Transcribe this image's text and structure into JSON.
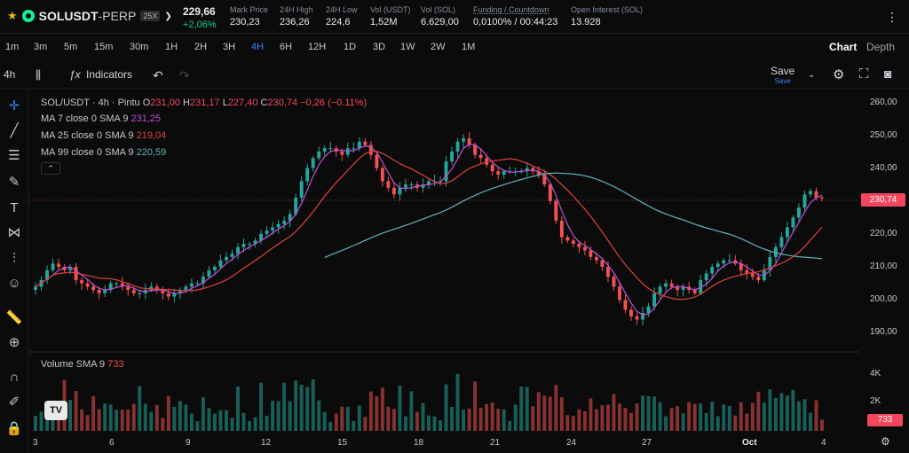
{
  "header": {
    "symbol": "SOLUSDT",
    "contract": "-PERP",
    "leverage": "25X",
    "last_price": "229,66",
    "change": "+2,06%",
    "stats": [
      {
        "label": "Mark Price",
        "value": "230,23"
      },
      {
        "label": "24H High",
        "value": "236,26"
      },
      {
        "label": "24H Low",
        "value": "224,6"
      },
      {
        "label": "Vol (USDT)",
        "value": "1,52M"
      },
      {
        "label": "Vol (SOL)",
        "value": "6.629,00"
      },
      {
        "label": "Funding / Countdown",
        "value": "0,0100% / 00:44:23"
      },
      {
        "label": "Open Interest (SOL)",
        "value": "13.928"
      }
    ]
  },
  "intervals": [
    "1m",
    "3m",
    "5m",
    "15m",
    "30m",
    "1H",
    "2H",
    "3H",
    "4H",
    "6H",
    "12H",
    "1D",
    "3D",
    "1W",
    "2W",
    "1M"
  ],
  "active_interval": "4H",
  "view_tabs": {
    "chart": "Chart",
    "depth": "Depth"
  },
  "toolbar": {
    "interval": "4h",
    "indicators": "Indicators",
    "save": "Save",
    "save_sub": "Save"
  },
  "chart": {
    "title": "SOL/USDT · 4h · Pintu",
    "ohlc": {
      "o_label": "O",
      "o": "231,00",
      "h_label": "H",
      "h": "231,17",
      "l_label": "L",
      "l": "227,40",
      "c_label": "C",
      "c": "230,74",
      "chg": "−0,26 (−0.11%)"
    },
    "ma": [
      {
        "name": "MA 7 close 0 SMA 9",
        "value": "231,25",
        "color": "#c04fd8"
      },
      {
        "name": "MA 25 close 0 SMA 9",
        "value": "219,04",
        "color": "#e0413d"
      },
      {
        "name": "MA 99 close 0 SMA 9",
        "value": "220,59",
        "color": "#5fb3bd"
      }
    ],
    "current_price": "230,74",
    "price_axis": [
      "260,00",
      "250,00",
      "240,00",
      "220,00",
      "210,00",
      "200,00",
      "190,00"
    ],
    "volume_legend": {
      "name": "Volume SMA 9",
      "value": "733"
    },
    "volume_axis": [
      "4K",
      "2K"
    ],
    "volume_current": "733",
    "date_axis": [
      "3",
      "6",
      "9",
      "12",
      "15",
      "18",
      "21",
      "24",
      "27",
      "Oct",
      "4"
    ],
    "up_color": "#26a69a",
    "down_color": "#ef5350"
  },
  "chart_data": {
    "type": "candlestick",
    "price_ylim": [
      185,
      263
    ],
    "closes": [
      204,
      206,
      209,
      211,
      210,
      209,
      210,
      206,
      205,
      204,
      203,
      202,
      203,
      205,
      205,
      204,
      203,
      202,
      202,
      203,
      204,
      203,
      202,
      201,
      202,
      203,
      204,
      205,
      205,
      207,
      209,
      210,
      212,
      213,
      214,
      216,
      217,
      217,
      218,
      220,
      221,
      222,
      223,
      224,
      226,
      231,
      236,
      240,
      243,
      245,
      246,
      246,
      245,
      244,
      246,
      246,
      248,
      247,
      244,
      240,
      236,
      234,
      232,
      234,
      235,
      235,
      234,
      235,
      236,
      236,
      236,
      242,
      245,
      248,
      249,
      247,
      244,
      243,
      241,
      239,
      238,
      239,
      239,
      239,
      239,
      240,
      239,
      238,
      235,
      230,
      224,
      219,
      218,
      217,
      216,
      215,
      213,
      212,
      210,
      207,
      204,
      200,
      197,
      195,
      194,
      196,
      198,
      202,
      204,
      205,
      204,
      203,
      204,
      203,
      202,
      206,
      208,
      210,
      211,
      212,
      212,
      211,
      209,
      208,
      207,
      206,
      209,
      213,
      216,
      219,
      222,
      225,
      228,
      232,
      233,
      231,
      230.74
    ],
    "volume_ylim": [
      0,
      5500
    ]
  }
}
